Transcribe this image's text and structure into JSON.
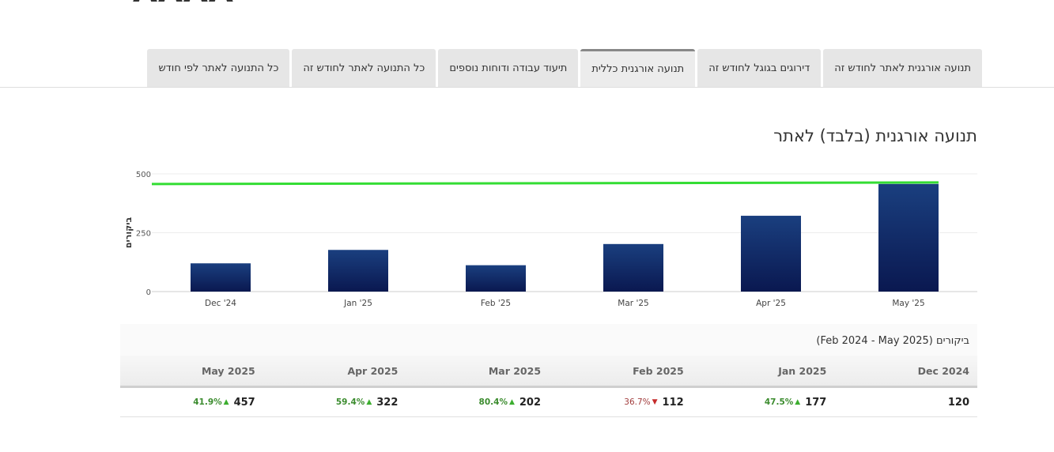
{
  "page": {
    "partial_title": "ΛΛΛΛ"
  },
  "tabs": [
    {
      "label": "תנועה אורגנית לאתר לחודש זה",
      "active": false
    },
    {
      "label": "דירוגים בגוגל לחודש זה",
      "active": false
    },
    {
      "label": "תנועה אורגנית כללית",
      "active": true
    },
    {
      "label": "תיעוד עבודה ודוחות נוספים",
      "active": false
    },
    {
      "label": "כל התנועה לאתר לחודש זה",
      "active": false
    },
    {
      "label": "כל התנועה לאתר לפי חודש",
      "active": false
    }
  ],
  "section_title": "תנועה אורגנית (בלבד) לאתר",
  "chart_data": {
    "type": "bar",
    "categories": [
      "Dec '24",
      "Jan '25",
      "Feb '25",
      "Mar '25",
      "Apr '25",
      "May '25"
    ],
    "values": [
      120,
      177,
      112,
      202,
      322,
      457
    ],
    "ylabel": "ביקורים",
    "ylim": [
      0,
      500
    ],
    "yticks": [
      0,
      250,
      500
    ],
    "grid": true,
    "reference_line": {
      "value": 460,
      "color": "#33dd33"
    },
    "bar_color_top": "#1a3f7f",
    "bar_color_bottom": "#0a1850"
  },
  "table": {
    "caption": "ביקורים (Feb 2024 - May 2025)",
    "columns": [
      "Dec 2024",
      "Jan 2025",
      "Feb 2025",
      "Mar 2025",
      "Apr 2025",
      "May 2025"
    ],
    "cells": [
      {
        "value": "120",
        "change": "",
        "direction": ""
      },
      {
        "value": "177",
        "change": "47.5%",
        "direction": "up"
      },
      {
        "value": "112",
        "change": "36.7%",
        "direction": "down"
      },
      {
        "value": "202",
        "change": "80.4%",
        "direction": "up"
      },
      {
        "value": "322",
        "change": "59.4%",
        "direction": "up"
      },
      {
        "value": "457",
        "change": "41.9%",
        "direction": "up"
      }
    ]
  }
}
